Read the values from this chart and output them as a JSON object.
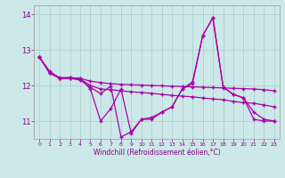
{
  "xlabel": "Windchill (Refroidissement éolien,°C)",
  "background_color": "#cce8e8",
  "grid_color": "#aacccc",
  "line_color": "#aa00aa",
  "x_values": [
    0,
    1,
    2,
    3,
    4,
    5,
    6,
    7,
    8,
    9,
    10,
    11,
    12,
    13,
    14,
    15,
    16,
    17,
    18,
    19,
    20,
    21,
    22,
    23
  ],
  "line1": [
    12.8,
    12.4,
    12.2,
    12.2,
    12.2,
    11.9,
    11.0,
    11.35,
    11.9,
    10.65,
    11.05,
    11.1,
    11.25,
    11.4,
    11.9,
    12.05,
    13.4,
    13.9,
    11.95,
    11.75,
    11.65,
    11.25,
    11.05,
    11.0
  ],
  "line2": [
    12.8,
    12.35,
    12.2,
    12.22,
    12.18,
    12.0,
    11.9,
    11.88,
    11.85,
    11.82,
    11.8,
    11.78,
    11.75,
    11.72,
    11.7,
    11.68,
    11.65,
    11.62,
    11.6,
    11.55,
    11.52,
    11.5,
    11.45,
    11.4
  ],
  "line3": [
    12.8,
    12.38,
    12.22,
    12.22,
    12.2,
    12.12,
    12.08,
    12.05,
    12.03,
    12.02,
    12.01,
    12.0,
    11.99,
    11.98,
    11.97,
    11.96,
    11.95,
    11.94,
    11.93,
    11.92,
    11.91,
    11.9,
    11.88,
    11.85
  ],
  "line4": [
    12.8,
    12.35,
    12.2,
    12.2,
    12.15,
    11.95,
    11.77,
    11.98,
    10.55,
    10.7,
    11.05,
    11.05,
    11.25,
    11.4,
    11.9,
    12.1,
    13.4,
    13.9,
    11.95,
    11.75,
    11.65,
    11.05,
    11.0,
    11.0
  ],
  "ylim": [
    10.5,
    14.25
  ],
  "yticks": [
    11,
    12,
    13,
    14
  ],
  "xticks": [
    0,
    1,
    2,
    3,
    4,
    5,
    6,
    7,
    8,
    9,
    10,
    11,
    12,
    13,
    14,
    15,
    16,
    17,
    18,
    19,
    20,
    21,
    22,
    23
  ]
}
